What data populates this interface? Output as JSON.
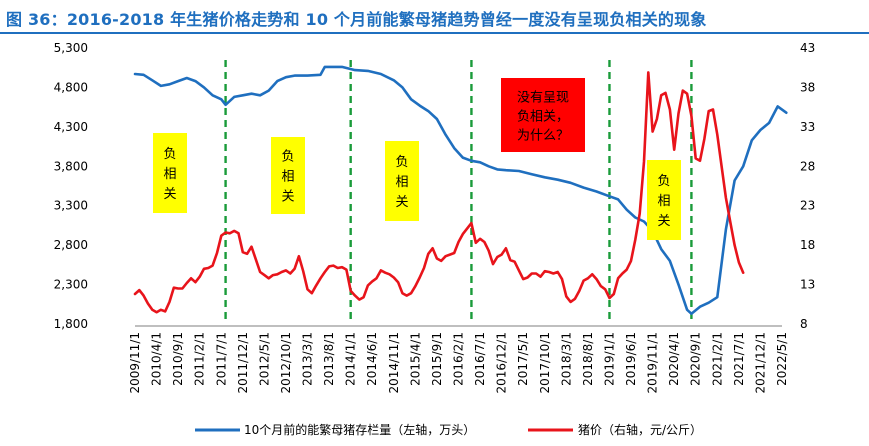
{
  "title": "图 36：2016-2018 年生猪价格走势和 10 个月前能繁母猪趋势曾经一度没有呈现负相关的现象",
  "colors": {
    "title": "#1f6fbf",
    "sow": "#1f6fbf",
    "hog": "#e8141b",
    "divider": "#1a9b3a",
    "note_yellow": "#ffff00",
    "note_red": "#ff0000"
  },
  "annotations": [
    {
      "lines": [
        "负",
        "相",
        "关"
      ],
      "color": "#ffff00"
    },
    {
      "lines": [
        "负",
        "相",
        "关"
      ],
      "color": "#ffff00"
    },
    {
      "lines": [
        "负",
        "相",
        "关"
      ],
      "color": "#ffff00"
    },
    {
      "lines": [
        "没有呈现",
        "负相关，",
        "为什么？"
      ],
      "color": "#ff0000"
    },
    {
      "lines": [
        "负",
        "相",
        "关"
      ],
      "color": "#ffff00"
    }
  ],
  "chart_data": {
    "type": "line",
    "categories": [
      "2009/11/1",
      "2010/4/1",
      "2010/9/1",
      "2011/2/1",
      "2011/7/1",
      "2011/12/1",
      "2012/5/1",
      "2012/10/1",
      "2013/3/1",
      "2013/8/1",
      "2014/1/1",
      "2014/6/1",
      "2014/11/1",
      "2015/4/1",
      "2015/9/1",
      "2016/2/1",
      "2016/7/1",
      "2016/12/1",
      "2017/5/1",
      "2017/10/1",
      "2018/3/1",
      "2018/8/1",
      "2019/1/1",
      "2019/6/1",
      "2019/11/1",
      "2020/4/1",
      "2020/9/1",
      "2021/2/1",
      "2021/7/1",
      "2021/12/1",
      "2022/5/1"
    ],
    "x_start": "2009-11",
    "x_end": "2022-05",
    "y_left": {
      "ticks": [
        1800,
        2300,
        2800,
        3300,
        3800,
        4300,
        4800,
        5300
      ],
      "range": [
        1800,
        5300
      ]
    },
    "y_right": {
      "ticks": [
        8,
        13,
        18,
        23,
        28,
        33,
        38,
        43
      ],
      "range": [
        8,
        43
      ]
    },
    "dividers": [
      "2011-08",
      "2014-01",
      "2016-05",
      "2019-01",
      "2020-08"
    ],
    "series": [
      {
        "name": "10个月前的能繁母猪存栏量（左轴，万头）",
        "axis": "left",
        "points": [
          [
            "2009-11",
            4970
          ],
          [
            "2010-01",
            4960
          ],
          [
            "2010-03",
            4890
          ],
          [
            "2010-05",
            4820
          ],
          [
            "2010-07",
            4840
          ],
          [
            "2010-09",
            4880
          ],
          [
            "2010-11",
            4920
          ],
          [
            "2011-01",
            4880
          ],
          [
            "2011-03",
            4800
          ],
          [
            "2011-05",
            4700
          ],
          [
            "2011-07",
            4650
          ],
          [
            "2011-08",
            4580
          ],
          [
            "2011-10",
            4680
          ],
          [
            "2011-12",
            4700
          ],
          [
            "2012-02",
            4720
          ],
          [
            "2012-04",
            4700
          ],
          [
            "2012-06",
            4760
          ],
          [
            "2012-08",
            4880
          ],
          [
            "2012-10",
            4930
          ],
          [
            "2012-12",
            4950
          ],
          [
            "2013-03",
            4950
          ],
          [
            "2013-06",
            4960
          ],
          [
            "2013-07",
            5060
          ],
          [
            "2013-08",
            5060
          ],
          [
            "2013-11",
            5060
          ],
          [
            "2014-02",
            5020
          ],
          [
            "2014-05",
            5010
          ],
          [
            "2014-08",
            4970
          ],
          [
            "2014-11",
            4890
          ],
          [
            "2015-01",
            4800
          ],
          [
            "2015-03",
            4650
          ],
          [
            "2015-05",
            4570
          ],
          [
            "2015-07",
            4500
          ],
          [
            "2015-09",
            4400
          ],
          [
            "2015-11",
            4200
          ],
          [
            "2016-01",
            4030
          ],
          [
            "2016-03",
            3910
          ],
          [
            "2016-05",
            3870
          ],
          [
            "2016-07",
            3850
          ],
          [
            "2016-09",
            3800
          ],
          [
            "2016-11",
            3760
          ],
          [
            "2017-01",
            3750
          ],
          [
            "2017-04",
            3740
          ],
          [
            "2017-07",
            3700
          ],
          [
            "2017-10",
            3660
          ],
          [
            "2018-01",
            3630
          ],
          [
            "2018-04",
            3590
          ],
          [
            "2018-07",
            3530
          ],
          [
            "2018-10",
            3480
          ],
          [
            "2019-01",
            3420
          ],
          [
            "2019-03",
            3380
          ],
          [
            "2019-05",
            3250
          ],
          [
            "2019-07",
            3150
          ],
          [
            "2019-09",
            3100
          ],
          [
            "2019-11",
            2980
          ],
          [
            "2020-01",
            2750
          ],
          [
            "2020-03",
            2600
          ],
          [
            "2020-05",
            2300
          ],
          [
            "2020-07",
            1980
          ],
          [
            "2020-08",
            1930
          ],
          [
            "2020-10",
            2020
          ],
          [
            "2020-12",
            2070
          ],
          [
            "2021-02",
            2140
          ],
          [
            "2021-04",
            3000
          ],
          [
            "2021-06",
            3620
          ],
          [
            "2021-08",
            3800
          ],
          [
            "2021-10",
            4130
          ],
          [
            "2021-12",
            4260
          ],
          [
            "2022-02",
            4350
          ],
          [
            "2022-04",
            4560
          ],
          [
            "2022-06",
            4480
          ]
        ]
      },
      {
        "name": "猪价（右轴，元/公斤）",
        "axis": "right",
        "points": [
          [
            "2009-11",
            11.8
          ],
          [
            "2009-12",
            12.3
          ],
          [
            "2010-01",
            11.6
          ],
          [
            "2010-02",
            10.6
          ],
          [
            "2010-03",
            9.8
          ],
          [
            "2010-04",
            9.5
          ],
          [
            "2010-05",
            9.8
          ],
          [
            "2010-06",
            9.6
          ],
          [
            "2010-07",
            10.8
          ],
          [
            "2010-08",
            12.6
          ],
          [
            "2010-09",
            12.5
          ],
          [
            "2010-10",
            12.5
          ],
          [
            "2010-11",
            13.2
          ],
          [
            "2010-12",
            13.8
          ],
          [
            "2011-01",
            13.3
          ],
          [
            "2011-02",
            14.0
          ],
          [
            "2011-03",
            15.0
          ],
          [
            "2011-04",
            15.1
          ],
          [
            "2011-05",
            15.4
          ],
          [
            "2011-06",
            17.0
          ],
          [
            "2011-07",
            19.2
          ],
          [
            "2011-08",
            19.6
          ],
          [
            "2011-09",
            19.5
          ],
          [
            "2011-10",
            19.8
          ],
          [
            "2011-11",
            19.5
          ],
          [
            "2011-12",
            17.1
          ],
          [
            "2012-01",
            16.9
          ],
          [
            "2012-02",
            17.8
          ],
          [
            "2012-03",
            16.2
          ],
          [
            "2012-04",
            14.6
          ],
          [
            "2012-05",
            14.2
          ],
          [
            "2012-06",
            13.8
          ],
          [
            "2012-07",
            14.2
          ],
          [
            "2012-08",
            14.3
          ],
          [
            "2012-09",
            14.6
          ],
          [
            "2012-10",
            14.8
          ],
          [
            "2012-11",
            14.4
          ],
          [
            "2012-12",
            15.0
          ],
          [
            "2013-01",
            16.6
          ],
          [
            "2013-02",
            14.7
          ],
          [
            "2013-03",
            12.4
          ],
          [
            "2013-04",
            11.9
          ],
          [
            "2013-05",
            12.9
          ],
          [
            "2013-06",
            13.8
          ],
          [
            "2013-07",
            14.6
          ],
          [
            "2013-08",
            15.3
          ],
          [
            "2013-09",
            15.4
          ],
          [
            "2013-10",
            15.1
          ],
          [
            "2013-11",
            15.2
          ],
          [
            "2013-12",
            14.9
          ],
          [
            "2014-01",
            12.2
          ],
          [
            "2014-02",
            11.6
          ],
          [
            "2014-03",
            11.1
          ],
          [
            "2014-04",
            11.4
          ],
          [
            "2014-05",
            12.9
          ],
          [
            "2014-06",
            13.4
          ],
          [
            "2014-07",
            13.8
          ],
          [
            "2014-08",
            14.8
          ],
          [
            "2014-09",
            14.5
          ],
          [
            "2014-10",
            14.3
          ],
          [
            "2014-11",
            13.9
          ],
          [
            "2014-12",
            13.3
          ],
          [
            "2015-01",
            11.9
          ],
          [
            "2015-02",
            11.6
          ],
          [
            "2015-03",
            11.9
          ],
          [
            "2015-04",
            12.8
          ],
          [
            "2015-05",
            13.9
          ],
          [
            "2015-06",
            15.1
          ],
          [
            "2015-07",
            16.9
          ],
          [
            "2015-08",
            17.6
          ],
          [
            "2015-09",
            16.3
          ],
          [
            "2015-10",
            16.0
          ],
          [
            "2015-11",
            16.6
          ],
          [
            "2015-12",
            16.8
          ],
          [
            "2016-01",
            17.0
          ],
          [
            "2016-02",
            18.4
          ],
          [
            "2016-03",
            19.4
          ],
          [
            "2016-04",
            20.1
          ],
          [
            "2016-05",
            20.8
          ],
          [
            "2016-06",
            18.3
          ],
          [
            "2016-07",
            18.8
          ],
          [
            "2016-08",
            18.4
          ],
          [
            "2016-09",
            17.3
          ],
          [
            "2016-10",
            15.6
          ],
          [
            "2016-11",
            16.5
          ],
          [
            "2016-12",
            16.8
          ],
          [
            "2017-01",
            17.6
          ],
          [
            "2017-02",
            16.1
          ],
          [
            "2017-03",
            15.9
          ],
          [
            "2017-04",
            14.8
          ],
          [
            "2017-05",
            13.7
          ],
          [
            "2017-06",
            13.9
          ],
          [
            "2017-07",
            14.4
          ],
          [
            "2017-08",
            14.4
          ],
          [
            "2017-09",
            14.0
          ],
          [
            "2017-10",
            14.7
          ],
          [
            "2017-11",
            14.6
          ],
          [
            "2017-12",
            14.4
          ],
          [
            "2018-01",
            14.6
          ],
          [
            "2018-02",
            13.7
          ],
          [
            "2018-03",
            11.5
          ],
          [
            "2018-04",
            10.8
          ],
          [
            "2018-05",
            11.2
          ],
          [
            "2018-06",
            12.2
          ],
          [
            "2018-07",
            13.5
          ],
          [
            "2018-08",
            13.8
          ],
          [
            "2018-09",
            14.3
          ],
          [
            "2018-10",
            13.7
          ],
          [
            "2018-11",
            12.8
          ],
          [
            "2018-12",
            12.4
          ],
          [
            "2019-01",
            11.3
          ],
          [
            "2019-02",
            11.8
          ],
          [
            "2019-03",
            13.8
          ],
          [
            "2019-04",
            14.4
          ],
          [
            "2019-05",
            14.9
          ],
          [
            "2019-06",
            16.0
          ],
          [
            "2019-07",
            18.7
          ],
          [
            "2019-08",
            22.0
          ],
          [
            "2019-09",
            28.6
          ],
          [
            "2019-10",
            39.9
          ],
          [
            "2019-11",
            32.4
          ],
          [
            "2019-12",
            34.0
          ],
          [
            "2020-01",
            37.0
          ],
          [
            "2020-02",
            37.3
          ],
          [
            "2020-03",
            35.2
          ],
          [
            "2020-04",
            30.1
          ],
          [
            "2020-05",
            34.7
          ],
          [
            "2020-06",
            37.6
          ],
          [
            "2020-07",
            37.2
          ],
          [
            "2020-08",
            34.4
          ],
          [
            "2020-09",
            29.0
          ],
          [
            "2020-10",
            28.7
          ],
          [
            "2020-11",
            31.5
          ],
          [
            "2020-12",
            35.0
          ],
          [
            "2021-01",
            35.2
          ],
          [
            "2021-02",
            32.0
          ],
          [
            "2021-03",
            28.0
          ],
          [
            "2021-04",
            24.0
          ],
          [
            "2021-05",
            21.0
          ],
          [
            "2021-06",
            18.0
          ],
          [
            "2021-07",
            15.8
          ],
          [
            "2021-08",
            14.5
          ]
        ]
      }
    ]
  },
  "legend": {
    "sow_label": "10个月前的能繁母猪存栏量（左轴，万头）",
    "hog_label": "猪价（右轴，元/公斤）"
  }
}
